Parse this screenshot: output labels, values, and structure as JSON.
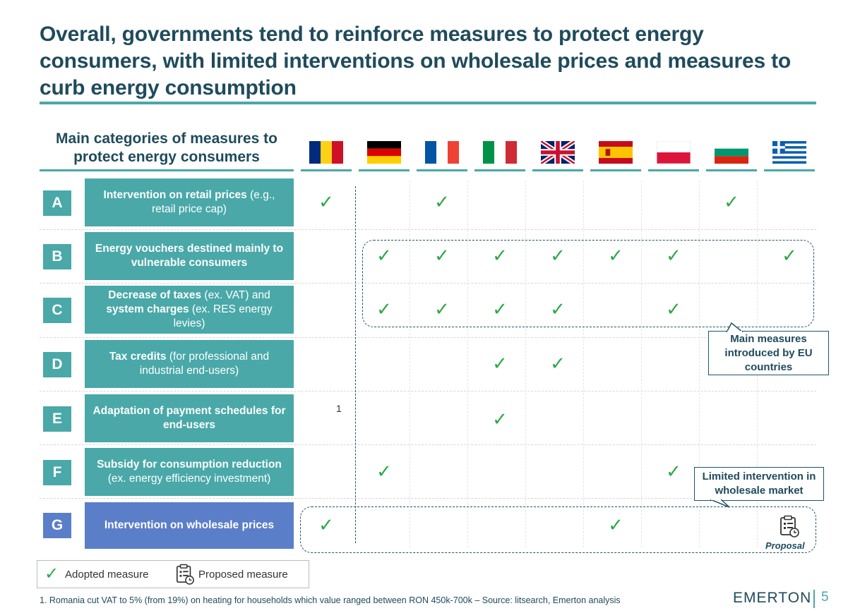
{
  "title": "Overall, governments tend to reinforce measures to protect energy consumers, with limited interventions on wholesale prices and measures to curb energy consumption",
  "table_header": "Main categories of measures to protect energy consumers",
  "countries": [
    {
      "flag": "romania-flag"
    },
    {
      "flag": "germany-flag"
    },
    {
      "flag": "france-flag"
    },
    {
      "flag": "italy-flag"
    },
    {
      "flag": "uk-flag"
    },
    {
      "flag": "spain-flag"
    },
    {
      "flag": "poland-flag"
    },
    {
      "flag": "bulgaria-flag"
    },
    {
      "flag": "greece-flag"
    }
  ],
  "rows": [
    {
      "letter": "A",
      "label_bold": "Intervention on retail prices",
      "label_rest": " (e.g., retail price cap)"
    },
    {
      "letter": "B",
      "label_bold": "Energy vouchers destined mainly to vulnerable consumers",
      "label_rest": ""
    },
    {
      "letter": "C",
      "label_bold": "Decrease of taxes",
      "label_rest": " (ex. VAT) and ",
      "label_bold2": "system charges",
      "label_rest2": " (ex. RES energy levies)"
    },
    {
      "letter": "D",
      "label_bold": "Tax credits",
      "label_rest": " (for professional and industrial end-users)"
    },
    {
      "letter": "E",
      "label_bold": "Adaptation of payment schedules for end-users",
      "label_rest": ""
    },
    {
      "letter": "F",
      "label_bold": "Subsidy for consumption reduction",
      "label_rest": " (ex. energy efficiency investment)"
    },
    {
      "letter": "G",
      "label_bold": "Intervention on wholesale prices",
      "label_rest": ""
    }
  ],
  "check_symbol": "✓",
  "footnote_marker": "1",
  "callout_main": "Main measures introduced by EU countries",
  "callout_limited": "Limited intervention in wholesale market",
  "proposal_label": "Proposal",
  "legend": {
    "adopted_symbol": "✓",
    "adopted": "Adopted measure",
    "proposed": "Proposed measure"
  },
  "footnote": "1. Romania cut VAT to 5% (from 19%) on heating for households which value ranged between RON 450k-700k – Source: litsearch, Emerton analysis",
  "logo": "EMERTON",
  "page_number": "5",
  "colors": {
    "teal": "#4aa8a8",
    "navy": "#1f4b5c",
    "purple": "#5b7ec8",
    "check_green": "#2ea84a"
  }
}
